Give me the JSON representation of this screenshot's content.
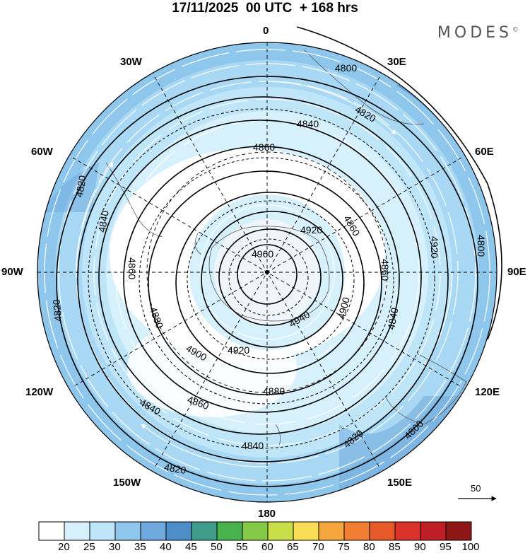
{
  "title": "17/11/2025  00 UTC  + 168 hrs",
  "brand": {
    "text": "MODES",
    "mark": "©"
  },
  "map": {
    "projection": "south-polar-stereographic",
    "longitude_labels": {
      "lon_0": "0",
      "lon_30e": "30E",
      "lon_60e": "60E",
      "lon_90e": "90E",
      "lon_120e": "120E",
      "lon_150e": "150E",
      "lon_180": "180",
      "lon_150w": "150W",
      "lon_120w": "120W",
      "lon_90w": "90W",
      "lon_60w": "60W",
      "lon_30w": "30W"
    },
    "contour_labels": [
      "4800",
      "4820",
      "4840",
      "4860",
      "4880",
      "4900",
      "4920",
      "4940",
      "4960"
    ],
    "reference_vector": "50",
    "wind_fill_colors": [
      "#ffffff",
      "#d6f0fc",
      "#bfe5f8",
      "#8ec6ec",
      "#6fa9dd",
      "#4d8ec9"
    ]
  },
  "colorbar": {
    "ticks": [
      "20",
      "25",
      "30",
      "35",
      "40",
      "45",
      "50",
      "55",
      "60",
      "65",
      "70",
      "75",
      "80",
      "85",
      "90",
      "95",
      "100"
    ],
    "colors": [
      "#ffffff",
      "#d6f0fc",
      "#bfe5f8",
      "#8ec6ec",
      "#6fa9dd",
      "#4d8ec9",
      "#3f9c8a",
      "#48b24e",
      "#86c847",
      "#c8df4a",
      "#f7dd55",
      "#f6a63e",
      "#f17f33",
      "#e65a2a",
      "#d8322a",
      "#be1f26",
      "#8d1616"
    ]
  }
}
